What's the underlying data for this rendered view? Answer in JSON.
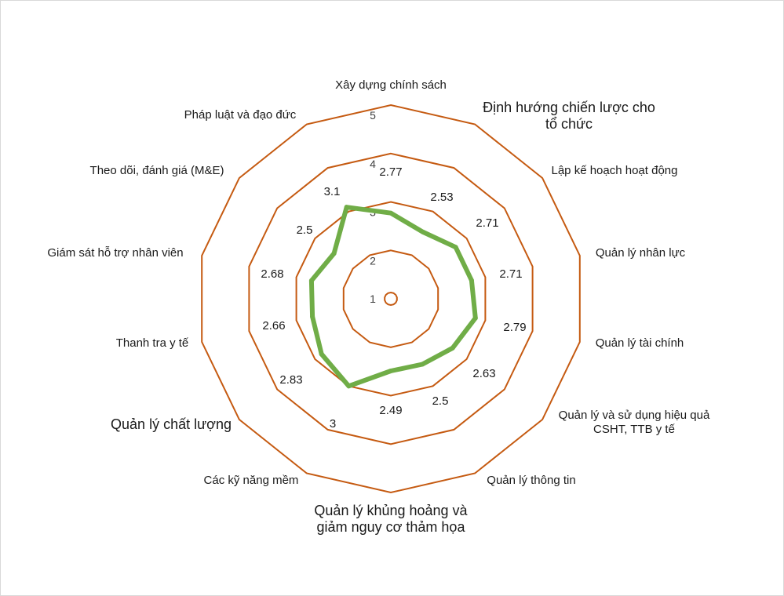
{
  "chart_data": {
    "type": "radar",
    "title": "",
    "categories": [
      "Xây dựng chính sách",
      "Định hướng chiến lược cho tổ chức",
      "Lập kế hoạch hoạt động",
      "Quản lý nhân lực",
      "Quản lý tài chính",
      "Quản lý và sử dụng hiệu quả CSHT, TTB y tế",
      "Quản lý thông tin",
      "Quản lý khủng hoảng và giảm nguy cơ thảm họa",
      "Các kỹ năng mềm",
      "Quản lý chất lượng",
      "Thanh tra y tế",
      "Giám sát hỗ trợ nhân viên",
      "Theo dõi, đánh giá (M&E)",
      "Pháp luật và đạo đức"
    ],
    "series": [
      {
        "name": "",
        "values": [
          2.77,
          2.53,
          2.71,
          2.71,
          2.79,
          2.63,
          2.5,
          2.49,
          3,
          2.83,
          2.66,
          2.68,
          2.5,
          3.1
        ]
      }
    ],
    "data_labels": [
      "2.77",
      "2.53",
      "2.71",
      "2.71",
      "2.79",
      "2.63",
      "2.5",
      "2.49",
      "3",
      "2.83",
      "2.66",
      "2.68",
      "2.5",
      "3.1"
    ],
    "r_ticks": [
      1,
      2,
      3,
      4,
      5
    ],
    "r_tick_labels": [
      "1",
      "2",
      "3",
      "4",
      "5"
    ],
    "rlim": [
      1,
      5
    ],
    "colors": {
      "grid": "#c55a11",
      "series": "#70ad47"
    }
  }
}
